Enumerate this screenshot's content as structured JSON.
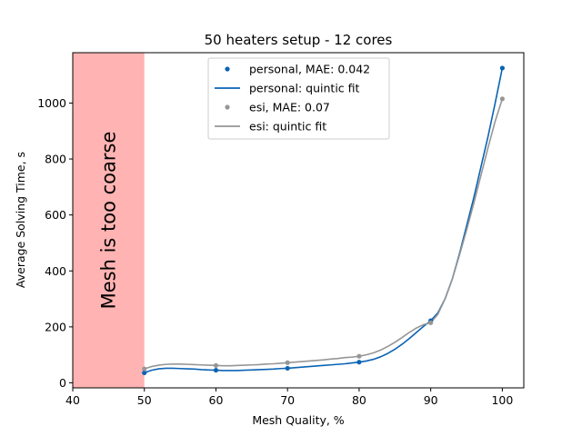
{
  "chart_data": {
    "type": "scatter",
    "title": "50 heaters setup - 12 cores",
    "xlabel": "Mesh Quality, %",
    "ylabel": "Average Solving Time, s",
    "xlim": [
      40,
      103
    ],
    "ylim": [
      -18,
      1180
    ],
    "xticks": [
      40,
      50,
      60,
      70,
      80,
      90,
      100
    ],
    "yticks": [
      0,
      200,
      400,
      600,
      800,
      1000
    ],
    "grid": false,
    "legend_position": "top-center",
    "shaded_region": {
      "x_range": [
        40,
        50
      ],
      "label": "Mesh is too coarse",
      "color": "#ffb3b3"
    },
    "series": [
      {
        "name": "personal, MAE: 0.042",
        "kind": "points",
        "color": "#0a63b5",
        "x": [
          50,
          60,
          70,
          80,
          90,
          100
        ],
        "y": [
          36,
          45,
          52,
          74,
          222,
          1125
        ]
      },
      {
        "name": "personal: quintic fit",
        "kind": "line",
        "color": "#0a63b5",
        "x": [
          50,
          51,
          52,
          53,
          54,
          55,
          56,
          57,
          58,
          59,
          60,
          61,
          62,
          63,
          64,
          65,
          66,
          67,
          68,
          69,
          70,
          71,
          72,
          73,
          74,
          75,
          76,
          77,
          78,
          79,
          80,
          81,
          82,
          83,
          84,
          85,
          86,
          87,
          88,
          89,
          90,
          91,
          92,
          93,
          94,
          95,
          96,
          97,
          98,
          99,
          100
        ],
        "y": [
          36,
          45,
          50,
          52,
          52,
          51,
          50,
          49,
          47,
          46,
          45,
          44,
          44,
          44,
          45,
          46,
          47,
          48,
          49,
          51,
          52,
          54,
          56,
          58,
          60,
          62,
          64,
          66,
          68,
          71,
          74,
          78,
          84,
          93,
          105,
          120,
          138,
          158,
          180,
          202,
          222,
          250,
          300,
          370,
          460,
          560,
          660,
          770,
          880,
          1000,
          1125
        ]
      },
      {
        "name": "esi, MAE: 0.07",
        "kind": "points",
        "color": "#969696",
        "x": [
          50,
          60,
          70,
          80,
          90,
          100
        ],
        "y": [
          50,
          62,
          72,
          95,
          215,
          1015
        ]
      },
      {
        "name": "esi: quintic fit",
        "kind": "line",
        "color": "#969696",
        "x": [
          50,
          51,
          52,
          53,
          54,
          55,
          56,
          57,
          58,
          59,
          60,
          61,
          62,
          63,
          64,
          65,
          66,
          67,
          68,
          69,
          70,
          71,
          72,
          73,
          74,
          75,
          76,
          77,
          78,
          79,
          80,
          81,
          82,
          83,
          84,
          85,
          86,
          87,
          88,
          89,
          90,
          91,
          92,
          93,
          94,
          95,
          96,
          97,
          98,
          99,
          100
        ],
        "y": [
          50,
          58,
          63,
          66,
          67,
          67,
          66,
          65,
          64,
          63,
          62,
          61,
          61,
          62,
          63,
          64,
          65,
          67,
          68,
          70,
          72,
          74,
          76,
          78,
          80,
          82,
          85,
          87,
          90,
          92,
          95,
          100,
          107,
          117,
          130,
          145,
          162,
          180,
          196,
          208,
          215,
          245,
          300,
          370,
          455,
          545,
          640,
          740,
          840,
          935,
          1015
        ]
      }
    ]
  }
}
